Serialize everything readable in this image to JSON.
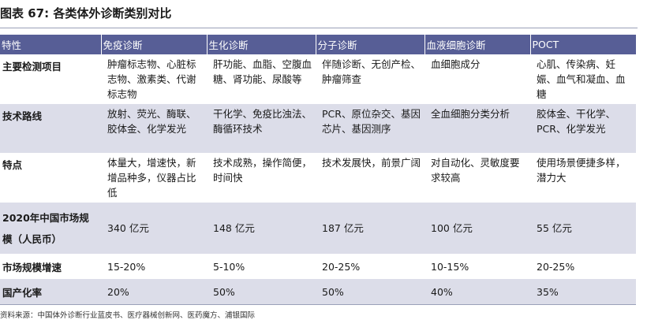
{
  "title": {
    "prefix": "图表",
    "number": "67",
    "text": ": 各类体外诊断类别对比"
  },
  "table": {
    "headers": [
      "特性",
      "免疫诊断",
      "生化诊断",
      "分子诊断",
      "血液细胞诊断",
      "POCT"
    ],
    "rows": [
      {
        "label": "主要检测项目",
        "cells": [
          "肿瘤标志物、心脏标志物、激素类、代谢标志物",
          "肝功能、血脂、空腹血糖、肾功能、尿酸等",
          "伴随诊断、无创产检、肿瘤筛查",
          "血细胞成分",
          "心肌、传染病、妊娠、血气和凝血、血糖"
        ]
      },
      {
        "label": "技术路线",
        "cells": [
          "放射、荧光、酶联、胶体金、化学发光",
          "干化学、免疫比浊法、酶循环技术",
          "PCR、原位杂交、基因芯片、基因测序",
          "全血细胞分类分析",
          "胶体金、干化学、PCR、化学发光"
        ]
      },
      {
        "label": "特点",
        "cells": [
          "体量大，增速快，新增品种多，仪器占比低",
          "技术成熟，操作简便，时间快",
          "技术发展快，前景广阔",
          "对自动化、灵敏度要求较高",
          "使用场景便捷多样，潜力大"
        ]
      },
      {
        "label": "2020年中国市场规模（人民币）",
        "cells": [
          "340 亿元",
          "148 亿元",
          "187 亿元",
          "100 亿元",
          "55 亿元"
        ]
      },
      {
        "label": "市场规模增速",
        "cells": [
          "15-20%",
          "5-10%",
          "20-25%",
          "10-15%",
          "20-25%"
        ]
      },
      {
        "label": "国产化率",
        "cells": [
          "20%",
          "50%",
          "50%",
          "40%",
          "35%"
        ]
      }
    ]
  },
  "source": "资料来源：中国体外诊断行业蓝皮书、医疗器械创新网、医药魔方、浦银国际",
  "colors": {
    "header_bg": "#575e96",
    "row_shade": "#dcdde9"
  }
}
